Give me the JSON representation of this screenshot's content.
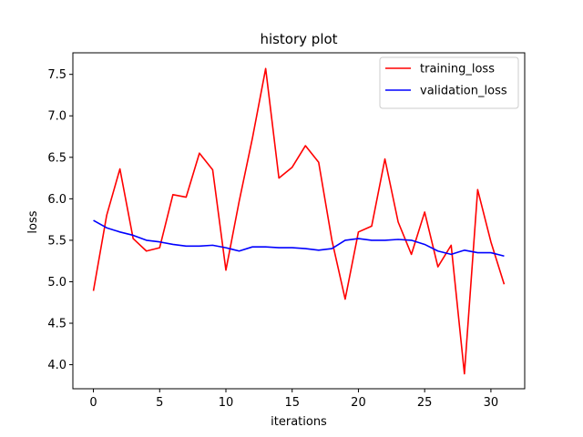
{
  "chart_data": {
    "type": "line",
    "title": "history plot",
    "xlabel": "iterations",
    "ylabel": "loss",
    "xlim": [
      -1.55,
      32.55
    ],
    "ylim": [
      3.71,
      7.76
    ],
    "xticks": [
      0,
      5,
      10,
      15,
      20,
      25,
      30
    ],
    "yticks": [
      4.0,
      4.5,
      5.0,
      5.5,
      6.0,
      6.5,
      7.0,
      7.5
    ],
    "xtick_labels": [
      "0",
      "5",
      "10",
      "15",
      "20",
      "25",
      "30"
    ],
    "ytick_labels": [
      "4.0",
      "4.5",
      "5.0",
      "5.5",
      "6.0",
      "6.5",
      "7.0",
      "7.5"
    ],
    "legend_position": "top-right",
    "x": [
      0,
      1,
      2,
      3,
      4,
      5,
      6,
      7,
      8,
      9,
      10,
      11,
      12,
      13,
      14,
      15,
      16,
      17,
      18,
      19,
      20,
      21,
      22,
      23,
      24,
      25,
      26,
      27,
      28,
      29,
      30,
      31
    ],
    "series": [
      {
        "name": "training_loss",
        "color": "#ff0000",
        "values": [
          4.89,
          5.8,
          6.36,
          5.52,
          5.37,
          5.41,
          6.05,
          6.02,
          6.55,
          6.35,
          5.14,
          5.97,
          6.73,
          7.57,
          6.25,
          6.38,
          6.64,
          6.44,
          5.5,
          4.79,
          5.6,
          5.67,
          6.48,
          5.72,
          5.33,
          5.84,
          5.18,
          5.44,
          3.89,
          6.11,
          5.48,
          4.97
        ]
      },
      {
        "name": "validation_loss",
        "color": "#0000ff",
        "values": [
          5.74,
          5.65,
          5.6,
          5.56,
          5.5,
          5.48,
          5.45,
          5.43,
          5.43,
          5.44,
          5.41,
          5.37,
          5.42,
          5.42,
          5.41,
          5.41,
          5.4,
          5.38,
          5.4,
          5.5,
          5.52,
          5.5,
          5.5,
          5.51,
          5.5,
          5.45,
          5.37,
          5.33,
          5.38,
          5.35,
          5.35,
          5.31
        ]
      }
    ]
  }
}
